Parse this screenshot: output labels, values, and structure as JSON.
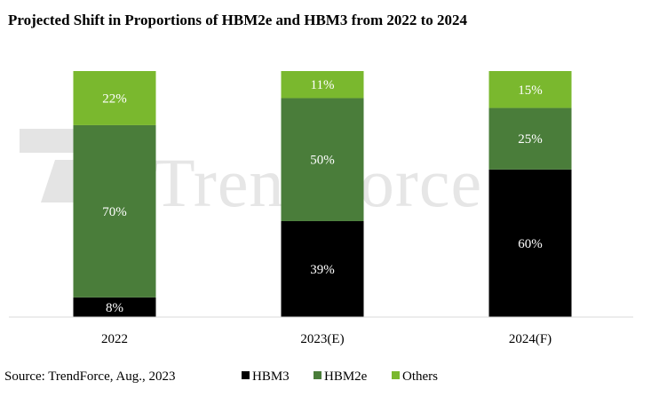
{
  "chart_data": {
    "type": "bar",
    "stacked": true,
    "title": "Projected Shift in Proportions of HBM2e and HBM3 from 2022 to 2024",
    "categories": [
      "2022",
      "2023(E)",
      "2024(F)"
    ],
    "series": [
      {
        "name": "HBM3",
        "color": "#000000",
        "values": [
          8,
          39,
          60
        ]
      },
      {
        "name": "HBM2e",
        "color": "#4a7d3a",
        "values": [
          70,
          50,
          25
        ]
      },
      {
        "name": "Others",
        "color": "#7ab82e",
        "values": [
          22,
          11,
          15
        ]
      }
    ],
    "value_suffix": "%",
    "ylim": [
      0,
      100
    ],
    "grid": false,
    "legend_position": "bottom"
  },
  "source": "Source: TrendForce, Aug., 2023",
  "watermark": "TrendForce"
}
